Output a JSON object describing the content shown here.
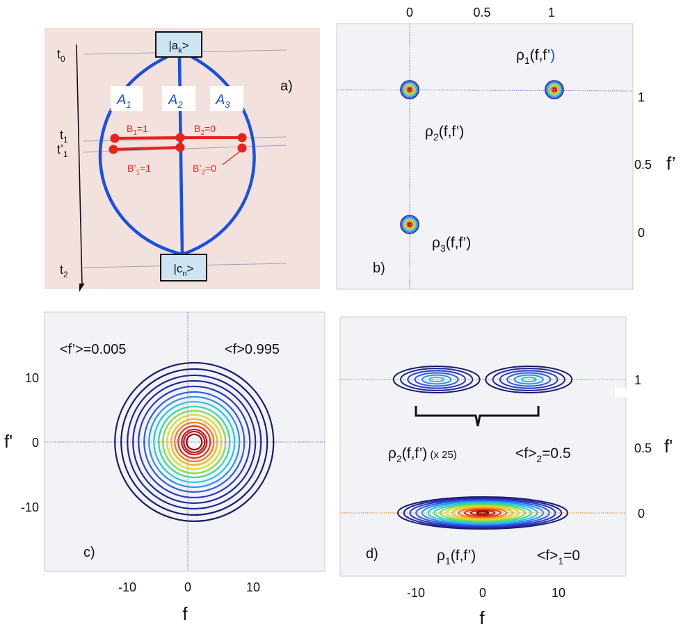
{
  "colors": {
    "panel_a_bg": "#f3e1de",
    "panel_plot_bg": "#f1f3f6",
    "path_blue": "#1a4fe0",
    "branch_red": "#e8211c",
    "guide_line": "#9aa3b8",
    "axis_purple": "#7a3aa8",
    "axis_orange": "#c8841e",
    "contour_ramp": [
      "#1b1b72",
      "#22269a",
      "#2c35c6",
      "#2f5ae8",
      "#2e8ff0",
      "#27c3ea",
      "#30d8a6",
      "#8bd83d",
      "#d7df1f",
      "#f4b81d",
      "#f07a1b",
      "#e8351a",
      "#c41515",
      "#8e0c0c"
    ]
  },
  "panel_a": {
    "tag": "a)",
    "times": {
      "t0": "t",
      "t0_sub": "0",
      "t1": "t",
      "t1_sub": "1",
      "t1p": "t’",
      "t1p_sub": "1",
      "t2": "t",
      "t2_sub": "2"
    },
    "state_top": {
      "main": "|a",
      "sub": "k",
      "close": ">"
    },
    "state_bottom": {
      "main": "|c",
      "sub": "n",
      "close": ">"
    },
    "paths": [
      {
        "main": "A",
        "sub": "1"
      },
      {
        "main": "A",
        "sub": "2"
      },
      {
        "main": "A",
        "sub": "3"
      }
    ],
    "b_labels": [
      {
        "main": "B",
        "sub": "1",
        "rest": "=1"
      },
      {
        "main": "B",
        "sub": "2",
        "rest": "=0"
      }
    ],
    "bp_labels": [
      {
        "main": "B’",
        "sub": "1",
        "rest": "=1"
      },
      {
        "main": "B’",
        "sub": "2",
        "rest": "=0"
      }
    ]
  },
  "chart_data": [
    {
      "panel": "b)",
      "type": "contour",
      "x_ticks": [
        "0",
        "0.5",
        "1"
      ],
      "y_ticks": [
        "1",
        "0.5",
        "0"
      ],
      "ylabel": "f’",
      "peaks": [
        {
          "x": 0,
          "y": 1,
          "label": "ρ2(f,f’)"
        },
        {
          "x": 1,
          "y": 1,
          "label": "ρ1(f,f’)"
        },
        {
          "x": 0,
          "y": 0,
          "label": "ρ3(f,f’)"
        }
      ],
      "labels": {
        "rho1": {
          "sym": "ρ",
          "sub": "1",
          "rest": "(f,f’",
          "close": ")"
        },
        "rho2": {
          "sym": "ρ",
          "sub": "2",
          "rest": "(f,f’)"
        },
        "rho3": {
          "sym": "ρ",
          "sub": "3",
          "rest": "(f,f’)"
        }
      }
    },
    {
      "panel": "c)",
      "type": "contour",
      "x_ticks": [
        "-10",
        "0",
        "10"
      ],
      "y_ticks": [
        "10",
        "0",
        "-10"
      ],
      "xlabel": "f",
      "ylabel": "f'",
      "center": {
        "x": 0.995,
        "y": 0.005
      },
      "annotations": {
        "fp_mean": "<f’>=0.005",
        "f_mean": "<f>0.995"
      }
    },
    {
      "panel": "d)",
      "type": "contour",
      "x_ticks": [
        "-10",
        "0",
        "10"
      ],
      "y_ticks": [
        "1",
        "0.5",
        "0"
      ],
      "xlabel": "f",
      "ylabel": "f'",
      "peaks": [
        {
          "x": -6.5,
          "y": 1,
          "series": "ρ2"
        },
        {
          "x": 6.5,
          "y": 1,
          "series": "ρ2"
        },
        {
          "x": 0,
          "y": 0,
          "series": "ρ1"
        }
      ],
      "labels": {
        "rho2": {
          "sym": "ρ",
          "sub": "2",
          "rest": "(f,f’)",
          "scale": " (x 25)",
          "mean": "<f>",
          "mean_sub": "2",
          "mean_val": "=0.5"
        },
        "rho1": {
          "sym": "ρ",
          "sub": "1",
          "rest": "(f,f’)",
          "mean": "<f>",
          "mean_sub": "1",
          "mean_val": "=0"
        }
      }
    }
  ]
}
